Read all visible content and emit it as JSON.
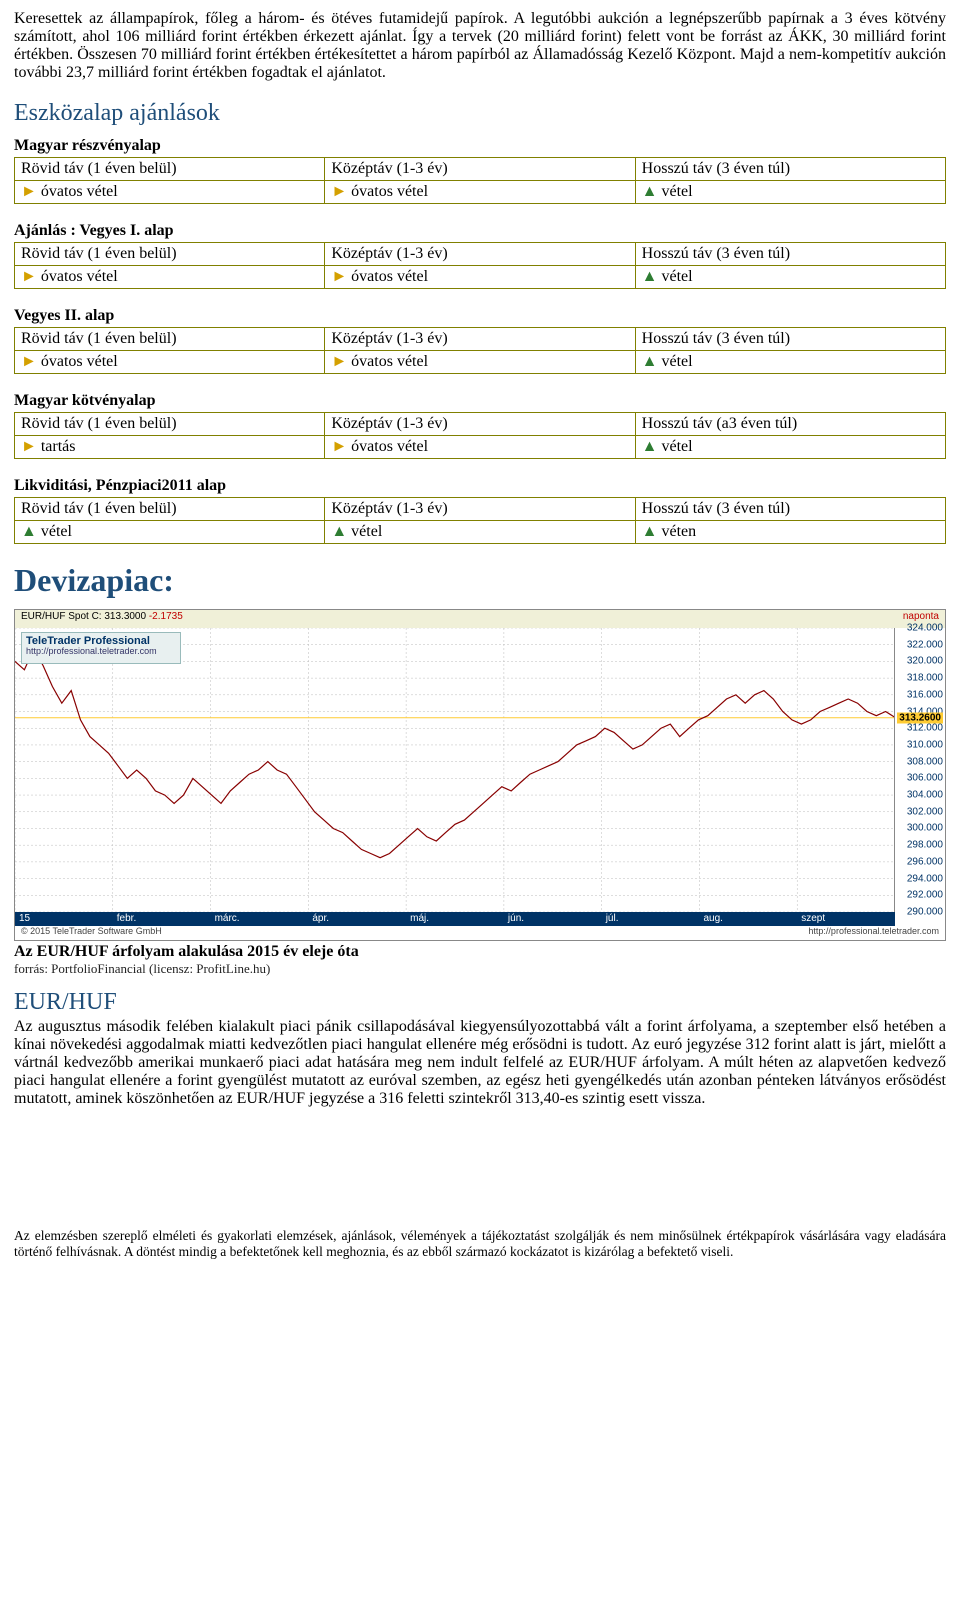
{
  "intro": "Keresettek az állampapírok, főleg a három- és ötéves futamidejű papírok. A legutóbbi aukción a legnépszerűbb papírnak a 3 éves kötvény számított, ahol 106 milliárd forint értékben érkezett ajánlat. Így a tervek (20 milliárd forint) felett vont be forrást az ÁKK, 30 milliárd forint értékben. Összesen 70 milliárd forint értékben értékesítettet a három papírból az Államadósság Kezelő Központ. Majd a nem-kompetitív aukción további 23,7 milliárd forint értékben fogadtak el ajánlatot.",
  "section_title": "Eszközalap ajánlások",
  "tables": [
    {
      "title": "Magyar részvényalap",
      "headers": [
        "Rövid táv (1 éven belül)",
        "Középtáv (1-3 év)",
        "Hosszú táv (3 éven túl)"
      ],
      "values": [
        {
          "marker": "right",
          "text": "óvatos vétel"
        },
        {
          "marker": "right",
          "text": "óvatos vétel"
        },
        {
          "marker": "up",
          "text": "vétel"
        }
      ]
    },
    {
      "title": "Ajánlás : Vegyes I. alap",
      "headers": [
        "Rövid táv (1 éven belül)",
        "Középtáv (1-3 év)",
        "Hosszú táv (3 éven túl)"
      ],
      "values": [
        {
          "marker": "right",
          "text": "óvatos vétel"
        },
        {
          "marker": "right",
          "text": "óvatos vétel"
        },
        {
          "marker": "up",
          "text": "vétel"
        }
      ]
    },
    {
      "title": "Vegyes II. alap",
      "headers": [
        "Rövid táv (1 éven belül)",
        "Középtáv (1-3 év)",
        "Hosszú táv (3 éven túl)"
      ],
      "values": [
        {
          "marker": "right",
          "text": "óvatos vétel"
        },
        {
          "marker": "right",
          "text": "óvatos vétel"
        },
        {
          "marker": "up",
          "text": "vétel"
        }
      ]
    },
    {
      "title": "Magyar kötvényalap",
      "headers": [
        "Rövid táv (1 éven belül)",
        "Középtáv (1-3 év)",
        "Hosszú táv (a3 éven túl)"
      ],
      "values": [
        {
          "marker": "right",
          "text": "tartás"
        },
        {
          "marker": "right",
          "text": "óvatos vétel"
        },
        {
          "marker": "up",
          "text": "vétel"
        }
      ]
    },
    {
      "title": "Likviditási, Pénzpiaci2011 alap",
      "headers": [
        "Rövid táv (1 éven belül)",
        "Középtáv (1-3 év)",
        "Hosszú táv (3 éven túl)"
      ],
      "values": [
        {
          "marker": "up",
          "text": "vétel"
        },
        {
          "marker": "up",
          "text": "vétel"
        },
        {
          "marker": "up",
          "text": "véten"
        }
      ]
    }
  ],
  "devizapiac_title": "Devizapiac:",
  "chart": {
    "type": "line",
    "title_left": "EUR/HUF Spot C: 313.3000",
    "title_change": "-2.1735",
    "title_right": "naponta",
    "logo_main": "TeleTrader Professional",
    "logo_sub": "http://professional.teletrader.com",
    "x_labels": [
      "15",
      "febr.",
      "márc.",
      "ápr.",
      "máj.",
      "jún.",
      "júl.",
      "aug.",
      "szept"
    ],
    "ymin": 290.0,
    "ymax": 324.0,
    "ytick_step": 2.0,
    "highlight_value": 313.26,
    "highlight_label": "313.2600",
    "line_color": "#880000",
    "grid_color": "#bbbbbb",
    "background_color": "#ffffff",
    "axis_text_color": "#003366",
    "highlight_color": "#ffcc33",
    "data": [
      320.0,
      319.0,
      321.5,
      319.5,
      317.0,
      315.0,
      316.5,
      313.0,
      311.0,
      310.0,
      309.0,
      307.5,
      306.0,
      307.0,
      306.0,
      304.5,
      304.0,
      303.0,
      304.0,
      306.0,
      305.0,
      304.0,
      303.0,
      304.5,
      305.5,
      306.5,
      307.0,
      308.0,
      307.0,
      306.5,
      305.0,
      303.5,
      302.0,
      301.0,
      300.0,
      299.5,
      298.5,
      297.5,
      297.0,
      296.5,
      297.0,
      298.0,
      299.0,
      300.0,
      299.0,
      298.5,
      299.5,
      300.5,
      301.0,
      302.0,
      303.0,
      304.0,
      305.0,
      304.5,
      305.5,
      306.5,
      307.0,
      307.5,
      308.0,
      309.0,
      310.0,
      310.5,
      311.0,
      312.0,
      311.5,
      310.5,
      309.5,
      310.0,
      311.0,
      312.0,
      312.5,
      311.0,
      312.0,
      313.0,
      313.5,
      314.5,
      315.5,
      316.0,
      315.0,
      316.0,
      316.5,
      315.5,
      314.0,
      313.0,
      312.5,
      313.0,
      314.0,
      314.5,
      315.0,
      315.5,
      315.0,
      314.0,
      313.5,
      314.0,
      313.3
    ],
    "copyright": "© 2015 TeleTrader Software GmbH",
    "footer_right": "http://professional.teletrader.com"
  },
  "chart_caption": "Az EUR/HUF árfolyam alakulása 2015 év eleje óta",
  "chart_caption_sub": "forrás: PortfolioFinancial (licensz: ProfitLine.hu)",
  "eurhuf_title": "EUR/HUF",
  "eurhuf_body": "Az augusztus második felében kialakult piaci pánik csillapodásával kiegyensúlyozottabbá vált a forint árfolyama, a szeptember első hetében a kínai növekedési aggodalmak miatti kedvezőtlen piaci hangulat ellenére még erősödni is tudott. Az euró jegyzése 312 forint alatt is járt, mielőtt a vártnál kedvezőbb amerikai munkaerő piaci adat hatására meg nem indult felfelé az EUR/HUF árfolyam. A múlt héten az alapvetően kedvező piaci hangulat ellenére a forint gyengülést mutatott az euróval szemben, az egész heti gyengélkedés után azonban pénteken látványos erősödést mutatott, aminek köszönhetően az EUR/HUF jegyzése a 316 feletti szintekről 313,40-es szintig esett vissza.",
  "footer": "Az elemzésben szereplő elméleti és gyakorlati elemzések, ajánlások, vélemények a tájékoztatást szolgálják és nem minősülnek értékpapírok vásárlására vagy eladására történő felhívásnak. A döntést mindig a befektetőnek kell meghoznia, és az ebből származó kockázatot is kizárólag a befektető viseli."
}
